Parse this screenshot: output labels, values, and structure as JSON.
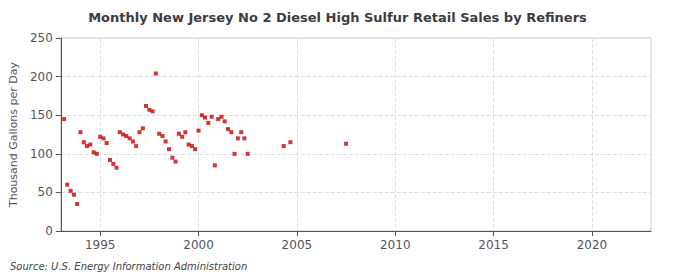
{
  "chart_data": {
    "type": "scatter",
    "title": "Monthly New Jersey No 2 Diesel High Sulfur Retail Sales by Refiners",
    "ylabel": "Thousand Gallons per Day",
    "annotations": [
      "Source: U.S. Energy Information Administration"
    ],
    "color": "#cc0000",
    "marker": "square",
    "grid": true,
    "xlim": [
      1993.0,
      2023.0
    ],
    "ylim": [
      0,
      250
    ],
    "xticks": [
      1995,
      2000,
      2005,
      2010,
      2015,
      2020
    ],
    "yticks": [
      0,
      50,
      100,
      150,
      200,
      250
    ],
    "x": [
      1993.17,
      1993.33,
      1993.5,
      1993.67,
      1993.83,
      1994.0,
      1994.17,
      1994.33,
      1994.5,
      1994.67,
      1994.83,
      1995.0,
      1995.17,
      1995.33,
      1995.5,
      1995.67,
      1995.83,
      1996.0,
      1996.17,
      1996.33,
      1996.5,
      1996.67,
      1996.83,
      1997.0,
      1997.17,
      1997.33,
      1997.5,
      1997.67,
      1997.83,
      1998.0,
      1998.17,
      1998.33,
      1998.5,
      1998.67,
      1998.83,
      1999.0,
      1999.17,
      1999.33,
      1999.5,
      1999.67,
      1999.83,
      2000.0,
      2000.17,
      2000.33,
      2000.5,
      2000.67,
      2000.83,
      2001.0,
      2001.17,
      2001.33,
      2001.5,
      2001.67,
      2001.83,
      2002.0,
      2002.17,
      2002.33,
      2002.5,
      2004.33,
      2004.67,
      2007.5
    ],
    "values": [
      145,
      60,
      52,
      47,
      35,
      128,
      115,
      110,
      112,
      102,
      100,
      122,
      120,
      114,
      92,
      87,
      82,
      128,
      125,
      123,
      120,
      116,
      110,
      128,
      133,
      162,
      157,
      155,
      204,
      126,
      123,
      116,
      106,
      95,
      90,
      126,
      122,
      128,
      112,
      110,
      106,
      130,
      150,
      147,
      140,
      148,
      85,
      145,
      148,
      142,
      132,
      128,
      100,
      120,
      128,
      120,
      100,
      110,
      115,
      113
    ]
  }
}
